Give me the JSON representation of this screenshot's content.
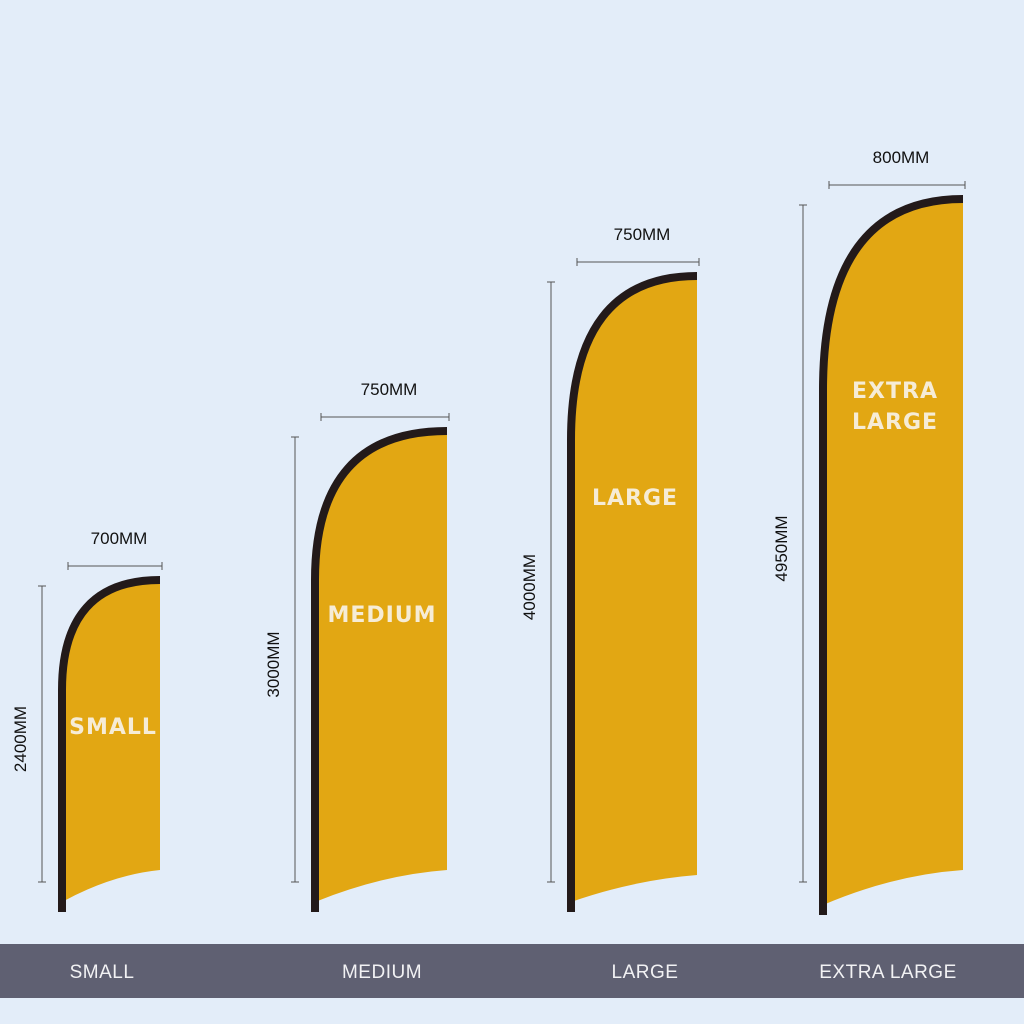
{
  "flags": [
    {
      "label_lines": [
        "SMALL"
      ],
      "width": "700MM",
      "height": "2400MM",
      "caption": "SMALL"
    },
    {
      "label_lines": [
        "MEDIUM"
      ],
      "width": "750MM",
      "height": "3000MM",
      "caption": "MEDIUM"
    },
    {
      "label_lines": [
        "LARGE"
      ],
      "width": "750MM",
      "height": "4000MM",
      "caption": "LARGE"
    },
    {
      "label_lines": [
        "EXTRA",
        "LARGE"
      ],
      "width": "800MM",
      "height": "4950MM",
      "caption": "EXTRA LARGE"
    }
  ]
}
